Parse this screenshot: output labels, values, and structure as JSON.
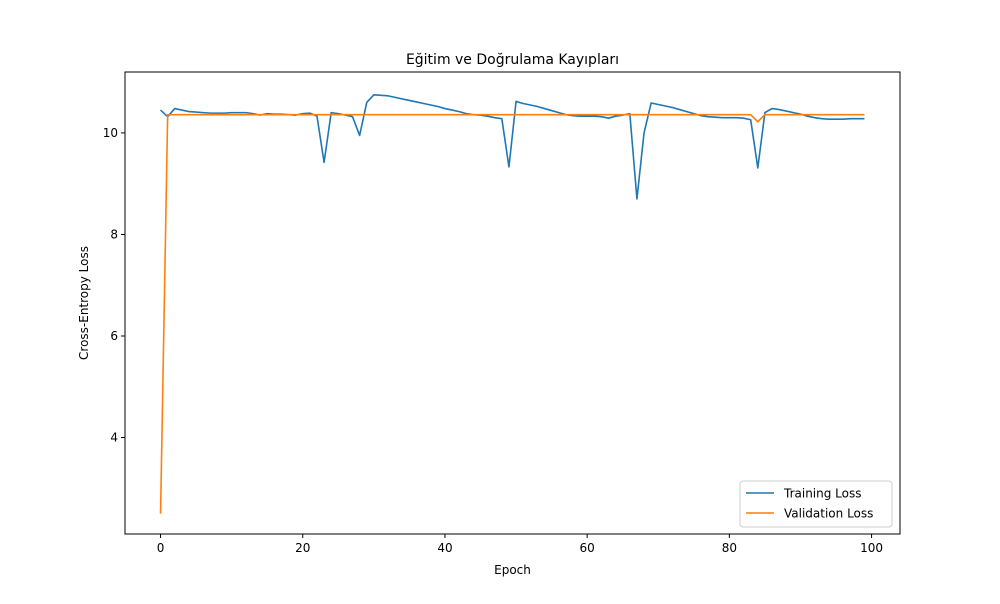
{
  "chart_data": {
    "type": "line",
    "title": "Eğitim ve Doğrulama Kayıpları",
    "xlabel": "Epoch",
    "ylabel": "Cross-Entropy Loss",
    "xlim": [
      -5,
      104
    ],
    "ylim": [
      2.1,
      11.2
    ],
    "xticks": [
      0,
      20,
      40,
      60,
      80,
      100
    ],
    "yticks": [
      4,
      6,
      8,
      10
    ],
    "grid": false,
    "legend": "lower-right",
    "series": [
      {
        "name": "Training Loss",
        "color": "#1f77b4",
        "x": [
          0,
          1,
          2,
          3,
          4,
          5,
          6,
          7,
          8,
          9,
          10,
          11,
          12,
          13,
          14,
          15,
          16,
          17,
          18,
          19,
          20,
          21,
          22,
          23,
          24,
          25,
          26,
          27,
          28,
          29,
          30,
          31,
          32,
          33,
          34,
          35,
          36,
          37,
          38,
          39,
          40,
          41,
          42,
          43,
          44,
          45,
          46,
          47,
          48,
          49,
          50,
          51,
          52,
          53,
          54,
          55,
          56,
          57,
          58,
          59,
          60,
          61,
          62,
          63,
          64,
          65,
          66,
          67,
          68,
          69,
          70,
          71,
          72,
          73,
          74,
          75,
          76,
          77,
          78,
          79,
          80,
          81,
          82,
          83,
          84,
          85,
          86,
          87,
          88,
          89,
          90,
          91,
          92,
          93,
          94,
          95,
          96,
          97,
          98,
          99
        ],
        "y": [
          10.45,
          10.32,
          10.48,
          10.45,
          10.42,
          10.41,
          10.4,
          10.39,
          10.39,
          10.39,
          10.4,
          10.4,
          10.4,
          10.38,
          10.35,
          10.38,
          10.37,
          10.37,
          10.36,
          10.35,
          10.38,
          10.39,
          10.33,
          9.42,
          10.4,
          10.38,
          10.35,
          10.32,
          9.95,
          10.6,
          10.75,
          10.74,
          10.73,
          10.7,
          10.67,
          10.64,
          10.61,
          10.58,
          10.55,
          10.52,
          10.48,
          10.45,
          10.42,
          10.38,
          10.36,
          10.35,
          10.33,
          10.3,
          10.28,
          9.33,
          10.62,
          10.58,
          10.55,
          10.52,
          10.48,
          10.44,
          10.4,
          10.36,
          10.34,
          10.33,
          10.33,
          10.33,
          10.32,
          10.29,
          10.33,
          10.35,
          10.38,
          8.7,
          10.0,
          10.59,
          10.56,
          10.53,
          10.5,
          10.46,
          10.42,
          10.38,
          10.34,
          10.32,
          10.31,
          10.3,
          10.3,
          10.3,
          10.29,
          10.26,
          9.31,
          10.4,
          10.48,
          10.46,
          10.43,
          10.4,
          10.37,
          10.33,
          10.3,
          10.28,
          10.27,
          10.27,
          10.27,
          10.28,
          10.28,
          10.28
        ]
      },
      {
        "name": "Validation Loss",
        "color": "#ff7f0e",
        "x": [
          0,
          1,
          2,
          10,
          20,
          30,
          40,
          50,
          60,
          70,
          80,
          83,
          84,
          85,
          90,
          99
        ],
        "y": [
          2.5,
          10.36,
          10.36,
          10.36,
          10.36,
          10.36,
          10.36,
          10.36,
          10.36,
          10.36,
          10.36,
          10.36,
          10.22,
          10.36,
          10.36,
          10.36
        ]
      }
    ]
  }
}
